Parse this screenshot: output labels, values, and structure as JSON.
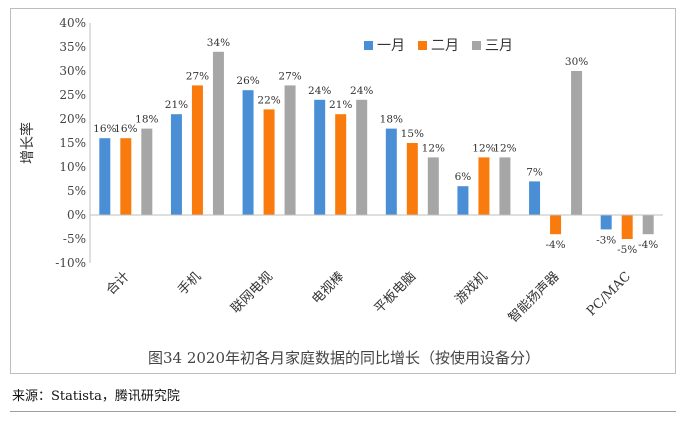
{
  "chart_data": {
    "type": "bar",
    "title": "图34  2020年初各月家庭数据的同比增长（按使用设备分）",
    "ylabel": "增长率",
    "xlabel": "",
    "ylim": [
      -10,
      40
    ],
    "ytick_step": 5,
    "ytick_suffix": "%",
    "legend_position": "top-right",
    "categories": [
      "合计",
      "手机",
      "联网电视",
      "电视棒",
      "平板电脑",
      "游戏机",
      "智能扬声器",
      "PC/MAC"
    ],
    "series": [
      {
        "name": "一月",
        "color": "#4a8fd6",
        "values": [
          16,
          21,
          26,
          24,
          18,
          6,
          7,
          -3
        ]
      },
      {
        "name": "二月",
        "color": "#f97b0e",
        "values": [
          16,
          27,
          22,
          21,
          15,
          12,
          -4,
          -5
        ]
      },
      {
        "name": "三月",
        "color": "#a6a6a6",
        "values": [
          18,
          34,
          27,
          24,
          12,
          12,
          30,
          -4
        ]
      }
    ]
  },
  "source_text": "来源：Statista，腾讯研究院"
}
